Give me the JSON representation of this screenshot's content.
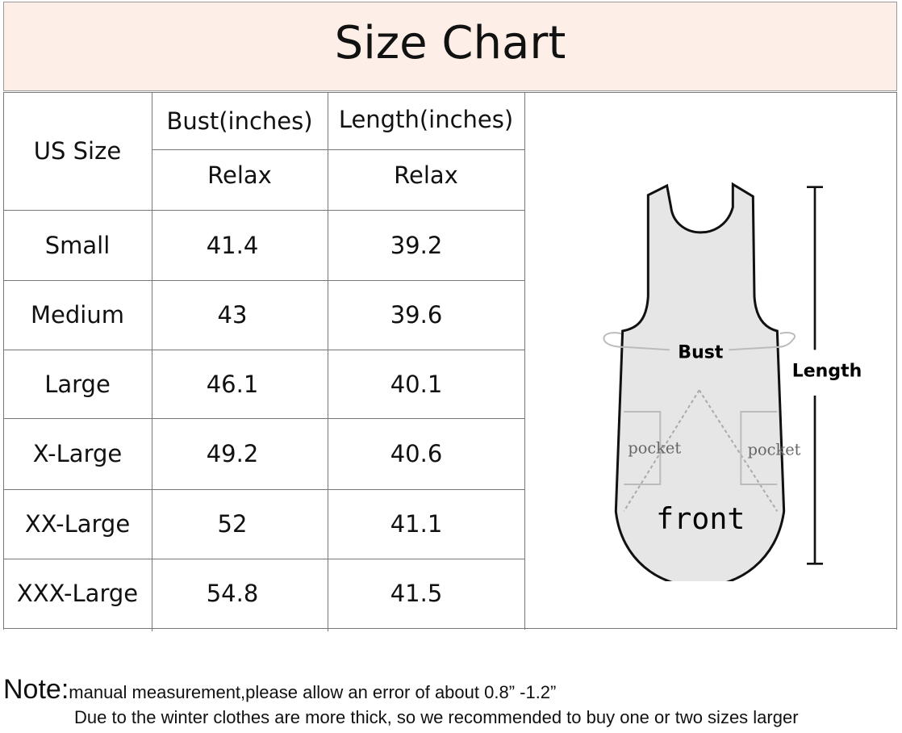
{
  "title": "Size Chart",
  "table": {
    "size_header": "US Size",
    "bust_header": "Bust(inches)",
    "length_header": "Length(inches)",
    "bust_sub": "Relax",
    "length_sub": "Relax",
    "rows": [
      {
        "size": "Small",
        "bust": "41.4",
        "length": "39.2"
      },
      {
        "size": "Medium",
        "bust": "43",
        "length": "39.6"
      },
      {
        "size": "Large",
        "bust": "46.1",
        "length": "40.1"
      },
      {
        "size": "X-Large",
        "bust": "49.2",
        "length": "40.6"
      },
      {
        "size": "XX-Large",
        "bust": "52",
        "length": "41.1"
      },
      {
        "size": "XXX-Large",
        "bust": "54.8",
        "length": "41.5"
      }
    ]
  },
  "diagram": {
    "bust": "Bust",
    "length": "Length",
    "pocket_left": "pocket",
    "pocket_right": "pocket",
    "front": "front"
  },
  "note": {
    "label": "Note:",
    "line1": "manual measurement,please allow an error of about 0.8”   -1.2”",
    "line2": "Due to the winter clothes are more thick, so we recommended to buy one or two sizes larger"
  }
}
